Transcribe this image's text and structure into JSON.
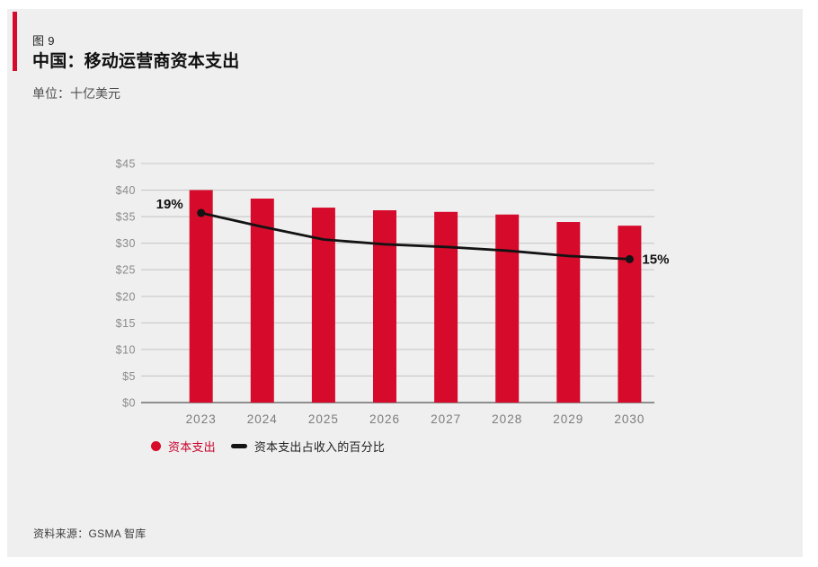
{
  "figure": {
    "label": "图 9",
    "title": "中国：移动运营商资本支出",
    "unit": "单位：十亿美元",
    "source": "资料来源：GSMA 智库"
  },
  "colors": {
    "accent_red": "#D60A2B",
    "legend_red_text": "#C9032B",
    "line_black": "#131313",
    "panel_bg": "#EFEFEF",
    "grid": "#C8C8C8",
    "baseline": "#6E6E6E",
    "axis_text": "#8B8B8B",
    "year_text": "#7C7C7C",
    "pct_label_text": "#111111"
  },
  "chart_data": {
    "type": "bar",
    "categories": [
      "2023",
      "2024",
      "2025",
      "2026",
      "2027",
      "2028",
      "2029",
      "2030"
    ],
    "series": [
      {
        "name": "资本支出",
        "type": "bar",
        "values": [
          40,
          38.4,
          36.7,
          36.2,
          35.9,
          35.4,
          34,
          33.3
        ],
        "color": "#D60A2B"
      },
      {
        "name": "资本支出占收入的百分比",
        "type": "line",
        "values_percent": [
          19,
          17.8,
          16.7,
          16.4,
          16.2,
          15.8,
          15.4,
          15
        ],
        "plot_dollar_equiv": [
          35.7,
          33.1,
          30.7,
          29.8,
          29.3,
          28.6,
          27.6,
          27.0
        ],
        "color": "#131313",
        "start_label": "19%",
        "end_label": "15%"
      }
    ],
    "title": "中国：移动运营商资本支出",
    "xlabel": "",
    "ylabel": "十亿美元",
    "ylim": [
      0,
      45
    ],
    "ytick_step": 5,
    "ytick_prefix": "$",
    "yticks": [
      "$45",
      "$40",
      "$35",
      "$30",
      "$25",
      "$20",
      "$15",
      "$10",
      "$5",
      "$0"
    ],
    "grid": true,
    "legend_position": "bottom"
  },
  "legend": {
    "items": [
      {
        "label": "资本支出",
        "marker": "circle",
        "color": "#D60A2B"
      },
      {
        "label": "资本支出占收入的百分比",
        "marker": "dash",
        "color": "#131313"
      }
    ]
  }
}
